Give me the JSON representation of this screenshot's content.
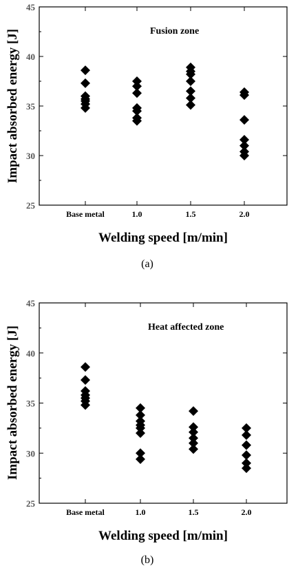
{
  "chart_data": [
    {
      "type": "scatter",
      "title": "",
      "annotation": "Fusion zone",
      "xlabel": "Welding speed [m/min]",
      "ylabel": "Impact absorbed energy [J]",
      "categories": [
        "Base metal",
        "1.0",
        "1.5",
        "2.0"
      ],
      "ylim": [
        25,
        45
      ],
      "yticks": [
        "25",
        "30",
        "35",
        "40",
        "45"
      ],
      "series": [
        {
          "values": [
            [
              38.6,
              37.3,
              36.0,
              35.7,
              35.5,
              35.2,
              34.8
            ],
            [
              37.5,
              37.0,
              36.3,
              34.8,
              34.5,
              33.8,
              33.5
            ],
            [
              38.9,
              38.5,
              38.2,
              37.5,
              36.5,
              35.8,
              35.1
            ],
            [
              36.4,
              36.1,
              33.6,
              31.6,
              31.0,
              30.4,
              30.0
            ]
          ]
        }
      ],
      "caption": "(a)"
    },
    {
      "type": "scatter",
      "title": "",
      "annotation": "Heat affected zone",
      "xlabel": "Welding speed [m/min]",
      "ylabel": "Impact absorbed energy [J]",
      "categories": [
        "Base metal",
        "1.0",
        "1.5",
        "2.0"
      ],
      "ylim": [
        25,
        45
      ],
      "yticks": [
        "25",
        "30",
        "35",
        "40",
        "45"
      ],
      "series": [
        {
          "values": [
            [
              38.6,
              37.3,
              36.2,
              35.8,
              35.5,
              35.2,
              34.8
            ],
            [
              34.5,
              33.8,
              33.2,
              32.8,
              32.5,
              32.0,
              30.0,
              29.4
            ],
            [
              34.2,
              32.6,
              32.1,
              31.5,
              31.0,
              30.4
            ],
            [
              32.5,
              31.8,
              30.8,
              29.8,
              29.0,
              28.5
            ]
          ]
        }
      ],
      "caption": "(b)"
    }
  ]
}
